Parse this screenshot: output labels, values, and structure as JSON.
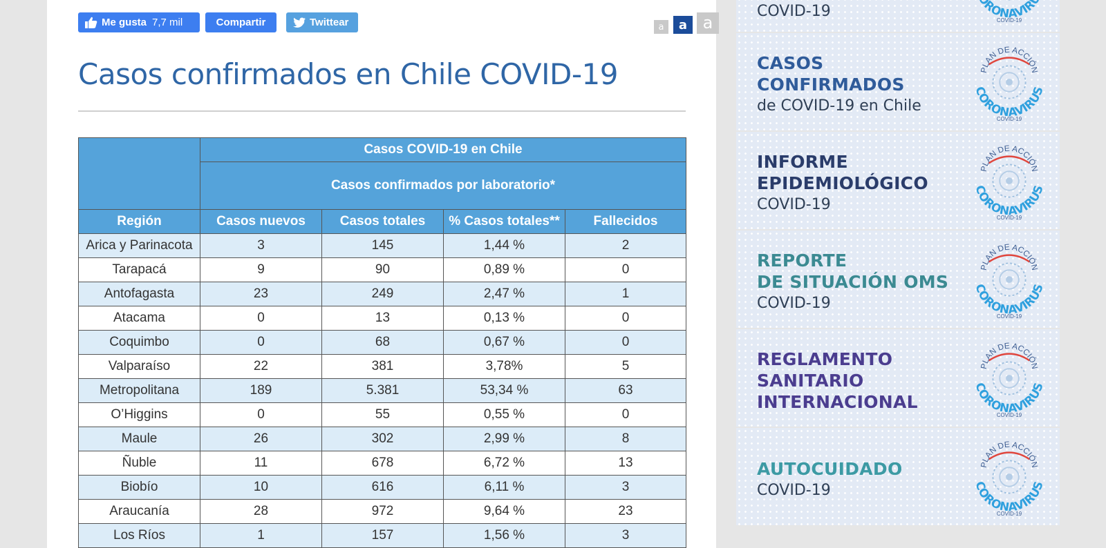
{
  "social": {
    "like_label": "Me gusta",
    "like_count": "7,7 mil",
    "share_label": "Compartir",
    "tweet_label": "Twittear"
  },
  "font_size_controls": {
    "small": "a",
    "medium": "a",
    "large": "a"
  },
  "page_title": "Casos confirmados en Chile COVID-19",
  "table": {
    "group_header": "Casos COVID-19 en Chile",
    "sub_header": "Casos confirmados por laboratorio*",
    "columns": [
      "Región",
      "Casos nuevos",
      "Casos totales",
      "% Casos totales**",
      "Fallecidos"
    ],
    "rows": [
      [
        "Arica y Parinacota",
        "3",
        "145",
        "1,44 %",
        "2"
      ],
      [
        "Tarapacá",
        "9",
        "90",
        "0,89 %",
        "0"
      ],
      [
        "Antofagasta",
        "23",
        "249",
        "2,47 %",
        "1"
      ],
      [
        "Atacama",
        "0",
        "13",
        "0,13 %",
        "0"
      ],
      [
        "Coquimbo",
        "0",
        "68",
        "0,67 %",
        "0"
      ],
      [
        "Valparaíso",
        "22",
        "381",
        "3,78%",
        "5"
      ],
      [
        "Metropolitana",
        "189",
        "5.381",
        "53,34 %",
        "63"
      ],
      [
        "O’Higgins",
        "0",
        "55",
        "0,55 %",
        "0"
      ],
      [
        "Maule",
        "26",
        "302",
        "2,99 %",
        "8"
      ],
      [
        "Ñuble",
        "11",
        "678",
        "6,72 %",
        "13"
      ],
      [
        "Biobío",
        "10",
        "616",
        "6,11 %",
        "3"
      ],
      [
        "Araucanía",
        "28",
        "972",
        "9,64 %",
        "23"
      ],
      [
        "Los Ríos",
        "1",
        "157",
        "1,56 %",
        "3"
      ]
    ]
  },
  "seal": {
    "top_text": "PLAN DE ACCIÓN",
    "main_text": "CORONAVIRUS",
    "bottom_text": "COVID-19"
  },
  "sidebar": {
    "banners": [
      {
        "lines": [],
        "sub": "COVID-19",
        "color": "#2f5b9a"
      },
      {
        "lines": [
          "CASOS",
          "CONFIRMADOS"
        ],
        "sub": "de COVID-19 en Chile",
        "color": "#2f5b9a"
      },
      {
        "lines": [
          "INFORME",
          "EPIDEMIOLÓGICO"
        ],
        "sub": "COVID-19",
        "color": "#2a3c6a"
      },
      {
        "lines": [
          "REPORTE",
          "DE SITUACIÓN OMS"
        ],
        "sub": "COVID-19",
        "color": "#3b8a92"
      },
      {
        "lines": [
          "REGLAMENTO",
          "SANITARIO",
          "INTERNACIONAL"
        ],
        "sub": "",
        "color": "#4b3d8f"
      },
      {
        "lines": [
          "AUTOCUIDADO"
        ],
        "sub": "COVID-19",
        "color": "#3c9aa4"
      }
    ]
  }
}
